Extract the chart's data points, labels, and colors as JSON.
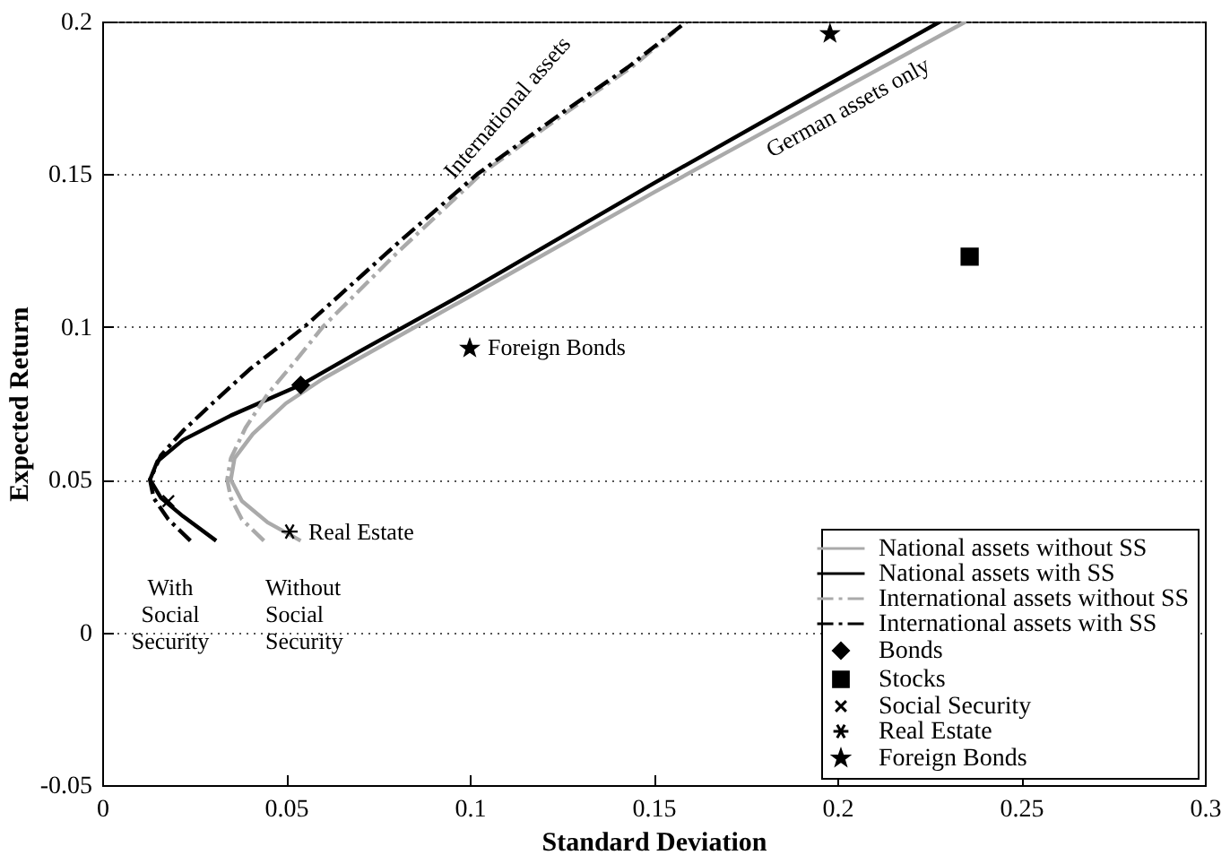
{
  "chart_data": {
    "type": "line",
    "xlabel": "Standard Deviation",
    "ylabel": "Expected Return",
    "xlim": [
      0,
      0.3
    ],
    "xticks": [
      0,
      0.05,
      0.1,
      0.15,
      0.2,
      0.25,
      0.3
    ],
    "ylim": [
      -0.05,
      0.2
    ],
    "yticks": [
      -0.05,
      0,
      0.05,
      0.1,
      0.15,
      0.2
    ],
    "grid": "y",
    "legend": "bottom right",
    "series": [
      {
        "name": "National assets without SS",
        "color": "#aaaaaa",
        "line_style": "solid",
        "x": [
          0.054,
          0.045,
          0.038,
          0.035,
          0.036,
          0.041,
          0.05,
          0.06,
          0.1,
          0.15,
          0.2,
          0.235
        ],
        "values": [
          0.03,
          0.036,
          0.043,
          0.05,
          0.057,
          0.065,
          0.075,
          0.083,
          0.11,
          0.144,
          0.177,
          0.2
        ]
      },
      {
        "name": "National assets with SS",
        "color": "#000000",
        "line_style": "solid",
        "x": [
          0.031,
          0.022,
          0.016,
          0.013,
          0.015,
          0.022,
          0.035,
          0.054,
          0.07,
          0.1,
          0.15,
          0.2,
          0.228
        ],
        "values": [
          0.03,
          0.038,
          0.044,
          0.05,
          0.056,
          0.063,
          0.071,
          0.081,
          0.092,
          0.112,
          0.147,
          0.181,
          0.2
        ]
      },
      {
        "name": "International assets without SS",
        "color": "#aaaaaa",
        "line_style": "dashed",
        "x": [
          0.044,
          0.038,
          0.035,
          0.034,
          0.035,
          0.039,
          0.045,
          0.052,
          0.06,
          0.08,
          0.103,
          0.126,
          0.144,
          0.159
        ],
        "values": [
          0.03,
          0.037,
          0.044,
          0.05,
          0.057,
          0.067,
          0.078,
          0.088,
          0.1,
          0.124,
          0.15,
          0.17,
          0.185,
          0.2
        ]
      },
      {
        "name": "International assets with SS",
        "color": "#000000",
        "line_style": "dashed",
        "x": [
          0.024,
          0.018,
          0.014,
          0.013,
          0.016,
          0.022,
          0.03,
          0.04,
          0.055,
          0.08,
          0.102,
          0.125,
          0.143,
          0.159
        ],
        "values": [
          0.03,
          0.037,
          0.044,
          0.05,
          0.058,
          0.066,
          0.075,
          0.086,
          0.1,
          0.127,
          0.15,
          0.17,
          0.185,
          0.2
        ]
      },
      {
        "name": "Bonds",
        "type": "scatter",
        "marker": "diamond",
        "color": "#000000",
        "x": [
          0.054
        ],
        "values": [
          0.081
        ]
      },
      {
        "name": "Stocks",
        "type": "scatter",
        "marker": "square",
        "color": "#000000",
        "x": [
          0.236
        ],
        "values": [
          0.123
        ]
      },
      {
        "name": "Social Security",
        "type": "scatter",
        "marker": "cross",
        "color": "#000000",
        "x": [
          0.018
        ],
        "values": [
          0.043
        ]
      },
      {
        "name": "Real Estate",
        "type": "scatter",
        "color": "#000000",
        "x": [
          0.051
        ],
        "values": [
          0.033
        ]
      },
      {
        "type": "scatter",
        "marker": "star",
        "color": "#000000",
        "x": [
          0.198
        ],
        "values": [
          0.196
        ]
      },
      {
        "name": "Foreign Bonds",
        "type": "scatter",
        "marker": "star",
        "color": "#000000",
        "x": [
          0.1
        ],
        "values": [
          0.093
        ]
      }
    ],
    "annotations": [
      "International  assets",
      "German assets only",
      "With\nSocial\nSecurity",
      "Without\nSocial\nSecurity",
      "Foreign Bonds",
      "Real Estate"
    ]
  }
}
